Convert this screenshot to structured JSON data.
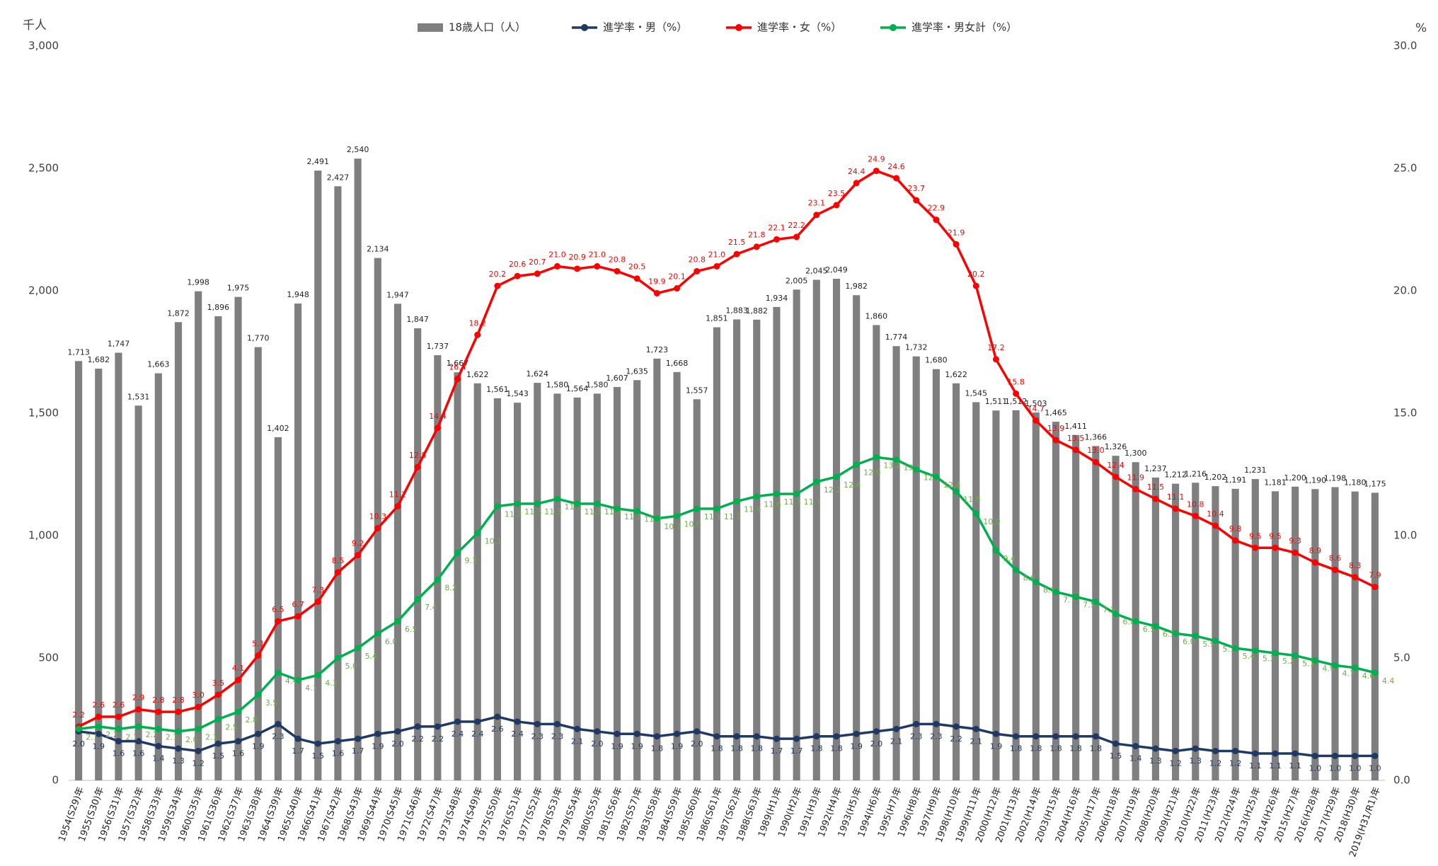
{
  "chart_data": {
    "type": "bar",
    "y_axis_label": "千人",
    "y2_axis_label": "%",
    "categories": [
      "1954(S29)年",
      "1955(S30)年",
      "1956(S31)年",
      "1957(S32)年",
      "1958(S33)年",
      "1959(S34)年",
      "1960(S35)年",
      "1961(S36)年",
      "1962(S37)年",
      "1963(S38)年",
      "1964(S39)年",
      "1965(S40)年",
      "1966(S41)年",
      "1967(S42)年",
      "1968(S43)年",
      "1969(S44)年",
      "1970(S45)年",
      "1971(S46)年",
      "1972(S47)年",
      "1973(S48)年",
      "1974(S49)年",
      "1975(S50)年",
      "1976(S51)年",
      "1977(S52)年",
      "1978(S53)年",
      "1979(S54)年",
      "1980(S55)年",
      "1981(S56)年",
      "1982(S57)年",
      "1983(S58)年",
      "1984(S59)年",
      "1985(S60)年",
      "1986(S61)年",
      "1987(S62)年",
      "1988(S63)年",
      "1989(H1)年",
      "1990(H2)年",
      "1991(H3)年",
      "1992(H4)年",
      "1993(H5)年",
      "1994(H6)年",
      "1995(H7)年",
      "1996(H8)年",
      "1997(H9)年",
      "1998(H10)年",
      "1999(H11)年",
      "2000(H12)年",
      "2001(H13)年",
      "2002(H14)年",
      "2003(H15)年",
      "2004(H16)年",
      "2005(H17)年",
      "2006(H18)年",
      "2007(H19)年",
      "2008(H20)年",
      "2009(H21)年",
      "2010(H22)年",
      "2011(H23)年",
      "2012(H24)年",
      "2013(H25)年",
      "2014(H26)年",
      "2015(H27)年",
      "2016(H28)年",
      "2017(H29)年",
      "2018(H30)年",
      "2019(H31/R1)年"
    ],
    "ylim": [
      0,
      3000
    ],
    "yticks": [
      0,
      500,
      {
        "value": 1000,
        "label": "1,000"
      },
      {
        "value": 1500,
        "label": "1,500"
      },
      {
        "value": 2000,
        "label": "2,000"
      },
      {
        "value": 2500,
        "label": "2,500"
      },
      {
        "value": 3000,
        "label": "3,000"
      }
    ],
    "y2lim": [
      0,
      30
    ],
    "y2ticks": [
      {
        "value": 0,
        "label": "0.0"
      },
      {
        "value": 5,
        "label": "5.0"
      },
      {
        "value": 10,
        "label": "10.0"
      },
      {
        "value": 15,
        "label": "15.0"
      },
      {
        "value": 20,
        "label": "20.0"
      },
      {
        "value": 25,
        "label": "25.0"
      },
      {
        "value": 30,
        "label": "30.0"
      }
    ],
    "grid": false,
    "legend": "top",
    "series": [
      {
        "name": "18歳人口（人）",
        "type": "bar",
        "color": "#7f7f7f",
        "label_color": "#222222",
        "values": [
          1713,
          1682,
          1747,
          1531,
          1663,
          1872,
          1998,
          1896,
          1975,
          1770,
          1402,
          1948,
          2491,
          2427,
          2540,
          2134,
          1947,
          1847,
          1737,
          1667,
          1622,
          1561,
          1543,
          1624,
          1580,
          1564,
          1580,
          1607,
          1635,
          1723,
          1668,
          1557,
          1851,
          1883,
          1882,
          1934,
          2005,
          2045,
          2049,
          1982,
          1860,
          1774,
          1732,
          1680,
          1622,
          1545,
          1511,
          1512,
          1503,
          1465,
          1411,
          1366,
          1326,
          1300,
          1237,
          1212,
          1216,
          1202,
          1191,
          1231,
          1181,
          1200,
          1190,
          1198,
          1180,
          1175
        ],
        "value_labels": [
          "1,713",
          "1,682",
          "1,747",
          "1,531",
          "1,663",
          "1,872",
          "1,998",
          "1,896",
          "1,975",
          "1,770",
          "1,402",
          "1,948",
          "2,491",
          "2,427",
          "2,540",
          "2,134",
          "1,947",
          "1,847",
          "1,737",
          "1,667",
          "1,622",
          "1,561",
          "1,543",
          "1,624",
          "1,580",
          "1,564",
          "1,580",
          "1,607",
          "1,635",
          "1,723",
          "1,668",
          "1,557",
          "1,851",
          "1,883",
          "1,882",
          "1,934",
          "2,005",
          "2,045",
          "2,049",
          "1,982",
          "1,860",
          "1,774",
          "1,732",
          "1,680",
          "1,622",
          "1,545",
          "1,511",
          "1,512",
          "1,503",
          "1,465",
          "1,411",
          "1,366",
          "1,326",
          "1,300",
          "1,237",
          "1,212",
          "1,216",
          "1,202",
          "1,191",
          "1,231",
          "1,181",
          "1,200",
          "1,190",
          "1,198",
          "1,180",
          "1,175"
        ]
      },
      {
        "name": "進学率・男（%）",
        "type": "line",
        "axis": "y2",
        "color": "#1f3864",
        "label_color": "#1f3864",
        "values": [
          2.0,
          1.9,
          1.6,
          1.6,
          1.4,
          1.3,
          1.2,
          1.5,
          1.6,
          1.9,
          2.3,
          1.7,
          1.5,
          1.6,
          1.7,
          1.9,
          2.0,
          2.2,
          2.2,
          2.4,
          2.4,
          2.6,
          2.4,
          2.3,
          2.3,
          2.1,
          2.0,
          1.9,
          1.9,
          1.8,
          1.9,
          2.0,
          1.8,
          1.8,
          1.8,
          1.7,
          1.7,
          1.8,
          1.8,
          1.9,
          2.0,
          2.1,
          2.3,
          2.3,
          2.2,
          2.1,
          1.9,
          1.8,
          1.8,
          1.8,
          1.8,
          1.8,
          1.5,
          1.4,
          1.3,
          1.2,
          1.3,
          1.2,
          1.2,
          1.1,
          1.1,
          1.1,
          1.0,
          1.0,
          1.0,
          1.0
        ],
        "value_labels": [
          "2.0",
          "1.9",
          "1.6",
          "1.6",
          "1.4",
          "1.3",
          "1.2",
          "1.5",
          "1.6",
          "1.9",
          "2.3",
          "1.7",
          "1.5",
          "1.6",
          "1.7",
          "1.9",
          "2.0",
          "2.2",
          "2.2",
          "2.4",
          "2.4",
          "2.6",
          "2.4",
          "2.3",
          "2.3",
          "2.1",
          "2.0",
          "1.9",
          "1.9",
          "1.8",
          "1.9",
          "2.0",
          "1.8",
          "1.8",
          "1.8",
          "1.7",
          "1.7",
          "1.8",
          "1.8",
          "1.9",
          "2.0",
          "2.1",
          "2.3",
          "2.3",
          "2.2",
          "2.1",
          "1.9",
          "1.8",
          "1.8",
          "1.8",
          "1.8",
          "1.8",
          "1.5",
          "1.4",
          "1.3",
          "1.2",
          "1.3",
          "1.2",
          "1.2",
          "1.1",
          "1.1",
          "1.1",
          "1.0",
          "1.0",
          "1.0",
          "1.0"
        ]
      },
      {
        "name": "進学率・女（%）",
        "type": "line",
        "axis": "y2",
        "color": "#ff0000",
        "label_color": "#ff0000",
        "values": [
          2.2,
          2.6,
          2.6,
          2.9,
          2.8,
          2.8,
          3.0,
          3.5,
          4.1,
          5.1,
          6.5,
          6.7,
          7.3,
          8.5,
          9.2,
          10.3,
          11.2,
          12.8,
          14.4,
          16.4,
          18.2,
          20.2,
          20.6,
          20.7,
          21.0,
          20.9,
          21.0,
          20.8,
          20.5,
          19.9,
          20.1,
          20.8,
          21.0,
          21.5,
          21.8,
          22.1,
          22.2,
          23.1,
          23.5,
          24.4,
          24.9,
          24.6,
          23.7,
          22.9,
          21.9,
          20.2,
          17.2,
          15.8,
          14.7,
          13.9,
          13.5,
          13.0,
          12.4,
          11.9,
          11.5,
          11.1,
          10.8,
          10.4,
          9.8,
          9.5,
          9.5,
          9.3,
          8.9,
          8.6,
          8.3,
          7.9
        ],
        "value_labels": [
          "2.2",
          "2.6",
          "2.6",
          "2.9",
          "2.8",
          "2.8",
          "3.0",
          "3.5",
          "4.1",
          "5.1",
          "6.5",
          "6.7",
          "7.3",
          "8.5",
          "9.2",
          "10.3",
          "11.2",
          "12.8",
          "14.4",
          "16.4",
          "18.2",
          "20.2",
          "20.6",
          "20.7",
          "21.0",
          "20.9",
          "21.0",
          "20.8",
          "20.5",
          "19.9",
          "20.1",
          "20.8",
          "21.0",
          "21.5",
          "21.8",
          "22.1",
          "22.2",
          "23.1",
          "23.5",
          "24.4",
          "24.9",
          "24.6",
          "23.7",
          "22.9",
          "21.9",
          "20.2",
          "17.2",
          "15.8",
          "14.7",
          "13.9",
          "13.5",
          "13.0",
          "12.4",
          "11.9",
          "11.5",
          "11.1",
          "10.8",
          "10.4",
          "9.8",
          "9.5",
          "9.5",
          "9.3",
          "8.9",
          "8.6",
          "8.3",
          "7.9"
        ]
      },
      {
        "name": "進学率・男女計（%）",
        "type": "line",
        "axis": "y2",
        "color": "#00b050",
        "label_color": "#70ad47",
        "values": [
          2.1,
          2.2,
          2.1,
          2.2,
          2.1,
          2.0,
          2.1,
          2.5,
          2.8,
          3.5,
          4.4,
          4.1,
          4.3,
          5.0,
          5.4,
          6.0,
          6.5,
          7.4,
          8.2,
          9.3,
          10.1,
          11.2,
          11.3,
          11.3,
          11.5,
          11.3,
          11.3,
          11.1,
          11.0,
          10.7,
          10.8,
          11.1,
          11.1,
          11.4,
          11.6,
          11.7,
          11.7,
          12.2,
          12.4,
          12.9,
          13.2,
          13.1,
          12.7,
          12.4,
          11.8,
          10.9,
          9.4,
          8.6,
          8.1,
          7.7,
          7.5,
          7.3,
          6.8,
          6.5,
          6.3,
          6.0,
          5.9,
          5.7,
          5.4,
          5.3,
          5.2,
          5.1,
          4.9,
          4.7,
          4.6,
          4.4
        ],
        "value_labels": [
          "2.1",
          "2.2",
          "2.1",
          "2.2",
          "2.1",
          "2.0",
          "2.1",
          "2.5",
          "2.8",
          "3.5",
          "4.4",
          "4.1",
          "4.3",
          "5.0",
          "5.4",
          "6.0",
          "6.5",
          "7.4",
          "8.2",
          "9.3",
          "10.1",
          "11.2",
          "11.3",
          "11.3",
          "11.5",
          "11.3",
          "11.3",
          "11.1",
          "11.0",
          "10.7",
          "10.8",
          "11.1",
          "11.1",
          "11.4",
          "11.6",
          "11.7",
          "11.7",
          "12.2",
          "12.4",
          "12.9",
          "13.2",
          "13.1",
          "12.7",
          "12.4",
          "11.8",
          "10.9",
          "9.4",
          "8.6",
          "8.1",
          "7.7",
          "7.5",
          "7.3",
          "6.8",
          "6.5",
          "6.3",
          "6.0",
          "5.9",
          "5.7",
          "5.4",
          "5.3",
          "5.2",
          "5.1",
          "4.9",
          "4.7",
          "4.6",
          "4.4"
        ]
      }
    ]
  }
}
